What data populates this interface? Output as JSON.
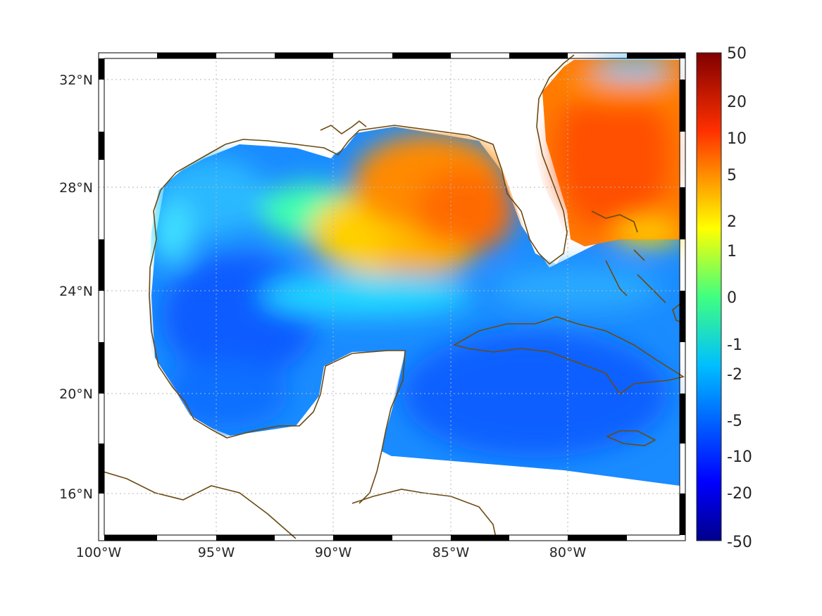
{
  "map": {
    "x_ticks": [
      "100°W",
      "95°W",
      "90°W",
      "85°W",
      "80°W"
    ],
    "x_tick_values": [
      -100,
      -95,
      -90,
      -85,
      -80
    ],
    "y_ticks": [
      "32°N",
      "28°N",
      "24°N",
      "20°N",
      "16°N"
    ],
    "y_tick_values": [
      32,
      28,
      24,
      20,
      16
    ],
    "lon_range": [
      -100,
      -75
    ],
    "lat_range": [
      14.2,
      33
    ],
    "grid": true,
    "frame": "black-white-checkered",
    "coastline_color": "#6b4a12"
  },
  "colorbar": {
    "labels": [
      "50",
      "20",
      "10",
      "5",
      "2",
      "1",
      "0",
      "-1",
      "-2",
      "-5",
      "-10",
      "-20",
      "-50"
    ],
    "colormap": "jet",
    "position": "right"
  },
  "palette": {
    "dark_red": "#800000",
    "red": "#ff2000",
    "orange": "#ff8c00",
    "yellow": "#ffe000",
    "cyan": "#00e5ff",
    "sky": "#1aa3ff",
    "blue": "#0050ff",
    "navy": "#00008b"
  }
}
